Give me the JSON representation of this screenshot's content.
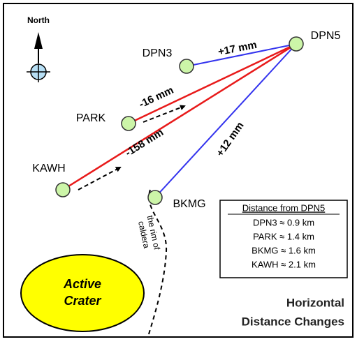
{
  "north": "North",
  "nodes": [
    {
      "label": "DPN3"
    },
    {
      "label": "DPN5"
    },
    {
      "label": "PARK"
    },
    {
      "label": "KAWH"
    },
    {
      "label": "BKMG"
    }
  ],
  "edges": [
    {
      "label": "+17 mm"
    },
    {
      "label": "-16 mm"
    },
    {
      "label": "-158 mm"
    },
    {
      "label": "+12 mm"
    }
  ],
  "crater": {
    "line1": "Active",
    "line2": "Crater"
  },
  "rim": {
    "line1": "the rim of",
    "line2": "caldera"
  },
  "legend": {
    "title": "Distance from DPN5",
    "rows": [
      "DPN3 ≈ 0.9 km",
      "PARK ≈ 1.4 km",
      "BKMG ≈ 1.6 km",
      "KAWH ≈ 2.1 km"
    ]
  },
  "footer": {
    "line1": "Horizontal",
    "line2": "Distance Changes"
  }
}
